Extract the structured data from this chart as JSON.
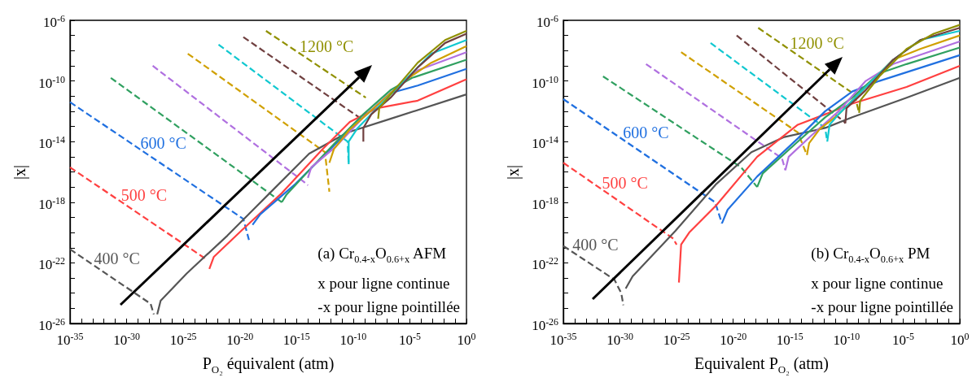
{
  "chart_data": [
    {
      "type": "line",
      "log": "xy",
      "marker": "none",
      "xlabel": "P$_{O₂}$ équivalent (atm)",
      "ylabel": "|x|",
      "annotations": [
        "(a) Cr$_{0.4-x}$O$_{0.6+x}$ AFM",
        "x pour ligne continue",
        "-x pour ligne pointillée"
      ],
      "xlim": [
        1e-35,
        1
      ],
      "ylim": [
        1e-26,
        1e-06
      ],
      "xticks": [
        {
          "value": 1e-35,
          "label": "10$^{-35}$"
        },
        {
          "value": 1e-34,
          "label": null
        },
        {
          "value": 1e-33,
          "label": null
        },
        {
          "value": 1e-32,
          "label": null
        },
        {
          "value": 1e-31,
          "label": null
        },
        {
          "value": 1e-30,
          "label": "10$^{-30}$"
        },
        {
          "value": 1e-29,
          "label": null
        },
        {
          "value": 1e-28,
          "label": null
        },
        {
          "value": 1e-27,
          "label": null
        },
        {
          "value": 1e-26,
          "label": null
        },
        {
          "value": 1e-25,
          "label": "10$^{-25}$"
        },
        {
          "value": 1e-24,
          "label": null
        },
        {
          "value": 1e-23,
          "label": null
        },
        {
          "value": 1e-22,
          "label": null
        },
        {
          "value": 1e-21,
          "label": null
        },
        {
          "value": 1e-20,
          "label": "10$^{-20}$"
        },
        {
          "value": 1e-19,
          "label": null
        },
        {
          "value": 1e-18,
          "label": null
        },
        {
          "value": 1e-17,
          "label": null
        },
        {
          "value": 1e-16,
          "label": null
        },
        {
          "value": 1e-15,
          "label": "10$^{-15}$"
        },
        {
          "value": 1e-14,
          "label": null
        },
        {
          "value": 1e-13,
          "label": null
        },
        {
          "value": 1e-12,
          "label": null
        },
        {
          "value": 1e-11,
          "label": null
        },
        {
          "value": 1e-10,
          "label": "10$^{-10}$"
        },
        {
          "value": 1e-09,
          "label": null
        },
        {
          "value": 1e-08,
          "label": null
        },
        {
          "value": 1e-07,
          "label": null
        },
        {
          "value": 1e-06,
          "label": null
        },
        {
          "value": 1e-05,
          "label": "10$^{-5}$"
        },
        {
          "value": 0.0001,
          "label": null
        },
        {
          "value": 0.001,
          "label": null
        },
        {
          "value": 0.01,
          "label": null
        },
        {
          "value": 0.1,
          "label": null
        },
        {
          "value": 1,
          "label": "10$^{0}$"
        }
      ],
      "yticks": [
        {
          "value": 1e-26,
          "label": "10$^{-26}$"
        },
        {
          "value": 1e-25,
          "label": null
        },
        {
          "value": 1e-24,
          "label": null
        },
        {
          "value": 1e-23,
          "label": null
        },
        {
          "value": 1e-22,
          "label": "10$^{-22}$"
        },
        {
          "value": 1e-21,
          "label": null
        },
        {
          "value": 1e-20,
          "label": null
        },
        {
          "value": 1e-19,
          "label": null
        },
        {
          "value": 1e-18,
          "label": "10$^{-18}$"
        },
        {
          "value": 1e-17,
          "label": null
        },
        {
          "value": 1e-16,
          "label": null
        },
        {
          "value": 1e-15,
          "label": null
        },
        {
          "value": 1e-14,
          "label": "10$^{-14}$"
        },
        {
          "value": 1e-13,
          "label": null
        },
        {
          "value": 1e-12,
          "label": null
        },
        {
          "value": 1e-11,
          "label": null
        },
        {
          "value": 1e-10,
          "label": "10$^{-10}$"
        },
        {
          "value": 1e-09,
          "label": null
        },
        {
          "value": 1e-08,
          "label": null
        },
        {
          "value": 1e-07,
          "label": null
        },
        {
          "value": 1e-06,
          "label": "10$^{-6}$"
        }
      ],
      "series": [
        {
          "name": "400 °C",
          "color": "#555555",
          "line_style": "dashed",
          "x": [
            1e-35,
            1.3e-28,
            2.5e-28
          ],
          "values": [
            7.9e-22,
            2e-25,
            4e-26
          ]
        },
        {
          "name": "500 °C",
          "color": "#ff4040",
          "line_style": "dashed",
          "x": [
            1e-35,
            7.9e-24
          ],
          "values": [
            2e-16,
            2e-22
          ]
        },
        {
          "name": "600 °C",
          "color": "#2070e0",
          "line_style": "dashed",
          "x": [
            1e-35,
            2e-20,
            6.3e-20
          ],
          "values": [
            4e-12,
            7.9e-20,
            3.2e-21
          ]
        },
        {
          "color": "#30a060",
          "line_style": "dashed",
          "x": [
            4e-32,
            5e-17
          ],
          "values": [
            1.6e-10,
            1e-18
          ]
        },
        {
          "color": "#b070e0",
          "line_style": "dashed",
          "x": [
            2e-28,
            7.9e-15,
            1e-14
          ],
          "values": [
            1e-09,
            1.6e-17,
            1.3e-17
          ]
        },
        {
          "color": "#d0a000",
          "line_style": "dashed",
          "x": [
            2.5e-25,
            3.2e-13,
            7.9e-13
          ],
          "values": [
            6.3e-09,
            2e-15,
            5e-18
          ]
        },
        {
          "color": "#10c8d0",
          "line_style": "dashed",
          "x": [
            1.3e-22,
            3.2e-11,
            4e-11
          ],
          "values": [
            2.5e-08,
            1e-14,
            3.2e-16
          ]
        },
        {
          "color": "#704040",
          "line_style": "dashed",
          "x": [
            2e-20,
            5e-10
          ],
          "values": [
            7.9e-08,
            3.2e-13
          ]
        },
        {
          "name": "1200 °C",
          "color": "#909000",
          "line_style": "dashed",
          "x": [
            2e-18,
            1.3e-09
          ],
          "values": [
            2e-07,
            7.9e-12
          ]
        },
        {
          "color": "#555555",
          "x": [
            5e-28,
            1e-27,
            2e-25,
            7.9e-22,
            3.2e-18,
            1.3e-14,
            3.2e-11,
            2e-07,
            1
          ],
          "values": [
            4e-26,
            3.2e-25,
            2e-23,
            6.3e-21,
            3.2e-18,
            1.6e-15,
            4e-14,
            3.2e-13,
            1.3e-11
          ]
        },
        {
          "color": "#ff4040",
          "x": [
            2e-23,
            5e-23,
            1.3e-20,
            5e-17,
            2e-13,
            5e-11,
            1.3e-08,
            5e-05,
            1
          ],
          "values": [
            4e-23,
            2.5e-22,
            1.3e-20,
            4e-18,
            3.2e-15,
            2e-13,
            1.6e-12,
            5e-12,
            1.3e-10
          ]
        },
        {
          "color": "#2070e0",
          "x": [
            1.3e-19,
            6.3e-19,
            7.9e-16,
            3.2e-12,
            7.9e-10,
            2e-07,
            5e-05,
            1
          ],
          "values": [
            3.2e-20,
            1.6e-19,
            1.6e-17,
            7.9e-15,
            4e-13,
            1.6e-11,
            5e-11,
            6.3e-10
          ]
        },
        {
          "color": "#30a060",
          "x": [
            5e-17,
            1.3e-16,
            1.3e-14,
            3.2e-12,
            7.9e-10,
            2e-07,
            1.6e-05,
            1
          ],
          "values": [
            1e-18,
            3.2e-18,
            1.3e-16,
            1e-14,
            6.3e-13,
            2.5e-11,
            1.6e-10,
            2.5e-09
          ]
        },
        {
          "color": "#b070e0",
          "x": [
            1e-14,
            2e-14,
            3.2e-12,
            7.9e-10,
            2e-07,
            5e-05,
            1
          ],
          "values": [
            4e-17,
            2e-16,
            5e-15,
            4e-13,
            1.6e-11,
            5e-10,
            7.9e-09
          ]
        },
        {
          "color": "#d0a000",
          "x": [
            7.9e-13,
            2e-12,
            5e-11,
            1.3e-08,
            3.2e-06,
            0.00079,
            1
          ],
          "values": [
            4e-16,
            3.2e-15,
            6.3e-14,
            2.5e-12,
            1e-10,
            1.6e-09,
            2e-08
          ]
        },
        {
          "color": "#10c8d0",
          "x": [
            4e-11,
            4e-11,
            2.5e-10,
            1.3e-08,
            3.2e-06,
            0.00079,
            1
          ],
          "values": [
            3.2e-16,
            1e-14,
            7.9e-14,
            1.6e-12,
            1e-10,
            6.3e-09,
            5e-08
          ]
        },
        {
          "color": "#704040",
          "x": [
            7.9e-10,
            7.9e-10,
            4e-09,
            2e-07,
            5e-05,
            0.013,
            1
          ],
          "values": [
            1e-14,
            7.9e-14,
            6.3e-13,
            7.9e-12,
            7.9e-10,
            3.2e-08,
            1.3e-07
          ]
        },
        {
          "color": "#909000",
          "x": [
            1.6e-08,
            2e-08,
            2e-07,
            5e-05,
            0.013,
            1
          ],
          "values": [
            3.2e-13,
            1.6e-12,
            1.3e-11,
            1.6e-09,
            5e-08,
            2e-07
          ]
        }
      ]
    },
    {
      "type": "line",
      "log": "xy",
      "marker": "none",
      "xlabel": "Equivalent P$_{O₂}$ (atm)",
      "ylabel": "|x|",
      "annotations": [
        "(b) Cr$_{0.4-x}$O$_{0.6+x}$ PM",
        "x pour ligne continue",
        "-x pour ligne pointillée"
      ],
      "xlim": [
        1e-35,
        1
      ],
      "ylim": [
        1e-26,
        1e-06
      ],
      "xticks": [
        {
          "value": 1e-35,
          "label": "10$^{-35}$"
        },
        {
          "value": 1e-34,
          "label": null
        },
        {
          "value": 1e-33,
          "label": null
        },
        {
          "value": 1e-32,
          "label": null
        },
        {
          "value": 1e-31,
          "label": null
        },
        {
          "value": 1e-30,
          "label": "10$^{-30}$"
        },
        {
          "value": 1e-29,
          "label": null
        },
        {
          "value": 1e-28,
          "label": null
        },
        {
          "value": 1e-27,
          "label": null
        },
        {
          "value": 1e-26,
          "label": null
        },
        {
          "value": 1e-25,
          "label": "10$^{-25}$"
        },
        {
          "value": 1e-24,
          "label": null
        },
        {
          "value": 1e-23,
          "label": null
        },
        {
          "value": 1e-22,
          "label": null
        },
        {
          "value": 1e-21,
          "label": null
        },
        {
          "value": 1e-20,
          "label": "10$^{-20}$"
        },
        {
          "value": 1e-19,
          "label": null
        },
        {
          "value": 1e-18,
          "label": null
        },
        {
          "value": 1e-17,
          "label": null
        },
        {
          "value": 1e-16,
          "label": null
        },
        {
          "value": 1e-15,
          "label": "10$^{-15}$"
        },
        {
          "value": 1e-14,
          "label": null
        },
        {
          "value": 1e-13,
          "label": null
        },
        {
          "value": 1e-12,
          "label": null
        },
        {
          "value": 1e-11,
          "label": null
        },
        {
          "value": 1e-10,
          "label": "10$^{-10}$"
        },
        {
          "value": 1e-09,
          "label": null
        },
        {
          "value": 1e-08,
          "label": null
        },
        {
          "value": 1e-07,
          "label": null
        },
        {
          "value": 1e-06,
          "label": null
        },
        {
          "value": 1e-05,
          "label": "10$^{-5}$"
        },
        {
          "value": 0.0001,
          "label": null
        },
        {
          "value": 0.001,
          "label": null
        },
        {
          "value": 0.01,
          "label": null
        },
        {
          "value": 0.1,
          "label": null
        },
        {
          "value": 1,
          "label": "10$^{0}$"
        }
      ],
      "yticks": [
        {
          "value": 1e-26,
          "label": "10$^{-26}$"
        },
        {
          "value": 1e-25,
          "label": null
        },
        {
          "value": 1e-24,
          "label": null
        },
        {
          "value": 1e-23,
          "label": null
        },
        {
          "value": 1e-22,
          "label": "10$^{-22}$"
        },
        {
          "value": 1e-21,
          "label": null
        },
        {
          "value": 1e-20,
          "label": null
        },
        {
          "value": 1e-19,
          "label": null
        },
        {
          "value": 1e-18,
          "label": "10$^{-18}$"
        },
        {
          "value": 1e-17,
          "label": null
        },
        {
          "value": 1e-16,
          "label": null
        },
        {
          "value": 1e-15,
          "label": null
        },
        {
          "value": 1e-14,
          "label": "10$^{-14}$"
        },
        {
          "value": 1e-13,
          "label": null
        },
        {
          "value": 1e-12,
          "label": null
        },
        {
          "value": 1e-11,
          "label": null
        },
        {
          "value": 1e-10,
          "label": "10$^{-10}$"
        },
        {
          "value": 1e-09,
          "label": null
        },
        {
          "value": 1e-08,
          "label": null
        },
        {
          "value": 1e-07,
          "label": null
        },
        {
          "value": 1e-06,
          "label": "10$^{-6}$"
        }
      ],
      "series": [
        {
          "name": "400 °C",
          "color": "#555555",
          "line_style": "dashed",
          "x": [
            1e-35,
            3.2e-31,
            1.3e-30,
            2e-30
          ],
          "values": [
            1.3e-21,
            7.9e-24,
            1e-24,
            1.6e-25
          ]
        },
        {
          "name": "500 °C",
          "color": "#ff4040",
          "line_style": "dashed",
          "x": [
            1e-35,
            5e-26,
            1e-25
          ],
          "values": [
            4e-16,
            4e-21,
            1.6e-21
          ]
        },
        {
          "name": "600 °C",
          "color": "#2070e0",
          "line_style": "dashed",
          "x": [
            1e-35,
            2.5e-22,
            1e-21
          ],
          "values": [
            6.3e-12,
            1e-18,
            4e-20
          ]
        },
        {
          "color": "#30a060",
          "line_style": "dashed",
          "x": [
            3.2e-32,
            5e-20,
            1.3e-18
          ],
          "values": [
            2e-10,
            2e-16,
            1e-17
          ]
        },
        {
          "color": "#b070e0",
          "line_style": "dashed",
          "x": [
            2e-28,
            2e-16,
            4e-16
          ],
          "values": [
            1.3e-09,
            7.9e-16,
            1.3e-16
          ]
        },
        {
          "color": "#d0a000",
          "line_style": "dashed",
          "x": [
            2.5e-25,
            5e-15,
            3.2e-14
          ],
          "values": [
            7.9e-09,
            4e-14,
            1.3e-15
          ]
        },
        {
          "color": "#10c8d0",
          "line_style": "dashed",
          "x": [
            1e-22,
            1.3e-12,
            2e-12
          ],
          "values": [
            3.2e-08,
            7.9e-14,
            1e-14
          ]
        },
        {
          "color": "#704040",
          "line_style": "dashed",
          "x": [
            2e-20,
            6.3e-11,
            7.9e-11
          ],
          "values": [
            1e-07,
            2e-13,
            1.6e-13
          ]
        },
        {
          "name": "1200 °C",
          "color": "#909000",
          "line_style": "dashed",
          "x": [
            1.6e-18,
            5e-10,
            1.3e-09
          ],
          "values": [
            3.2e-07,
            1.3e-11,
            7.9e-13
          ]
        },
        {
          "color": "#555555",
          "x": [
            3.2e-30,
            1.3e-29,
            7.9e-26,
            3.2e-22,
            4e-19,
            3.2e-16,
            1.3e-12,
            3.2e-10,
            2e-05,
            1
          ],
          "values": [
            2e-24,
            1.3e-23,
            1.3e-20,
            1.6e-17,
            2e-15,
            2e-14,
            7.9e-14,
            4e-13,
            7.9e-12,
            1.6e-10
          ]
        },
        {
          "color": "#ff4040",
          "x": [
            1.6e-25,
            2.5e-25,
            1.3e-24,
            3.2e-22,
            1.3e-18,
            5e-15,
            1.3e-12,
            3.2e-10,
            2e-05,
            1
          ],
          "values": [
            5e-24,
            1.6e-21,
            1e-20,
            6.3e-19,
            1e-15,
            1.3e-13,
            6.3e-13,
            3.2e-12,
            4e-11,
            1e-09
          ]
        },
        {
          "color": "#2070e0",
          "x": [
            1e-21,
            3.2e-21,
            1.3e-18,
            5e-15,
            1.3e-12,
            3.2e-10,
            7.9e-08,
            1
          ],
          "values": [
            4e-20,
            3.2e-19,
            5e-17,
            1.6e-14,
            1e-12,
            2e-11,
            1e-10,
            5e-09
          ]
        },
        {
          "color": "#30a060",
          "x": [
            1.3e-18,
            4e-18,
            5e-15,
            1.3e-12,
            3.2e-10,
            7.9e-08,
            2e-05,
            1
          ],
          "values": [
            1e-17,
            7.9e-17,
            1e-14,
            4e-13,
            7.9e-12,
            3.2e-10,
            1.3e-09,
            1.6e-08
          ]
        },
        {
          "color": "#b070e0",
          "x": [
            4e-16,
            7.9e-16,
            7.9e-14,
            2e-11,
            5e-09,
            1.3e-06,
            1
          ],
          "values": [
            1.3e-16,
            1e-15,
            2.5e-14,
            1e-12,
            1e-10,
            1.3e-09,
            4e-08
          ]
        },
        {
          "color": "#d0a000",
          "x": [
            3.2e-14,
            5e-14,
            4e-13,
            2e-11,
            5e-09,
            1.3e-06,
            0.00032,
            1
          ],
          "values": [
            1.3e-15,
            7.9e-15,
            6.3e-14,
            6.3e-13,
            4e-11,
            2.5e-09,
            1.3e-08,
            1e-07
          ]
        },
        {
          "color": "#10c8d0",
          "x": [
            2e-12,
            3.2e-12,
            2e-11,
            5e-09,
            1.3e-06,
            0.00032,
            1
          ],
          "values": [
            1e-14,
            1.3e-13,
            6.3e-13,
            4e-11,
            2.5e-09,
            5e-08,
            2e-07
          ]
        },
        {
          "color": "#704040",
          "x": [
            7.9e-11,
            1e-10,
            5e-09,
            1.3e-06,
            0.00032,
            1
          ],
          "values": [
            1.6e-13,
            1.6e-12,
            2.5e-11,
            2.5e-09,
            5e-08,
            3.2e-07
          ]
        },
        {
          "color": "#909000",
          "x": [
            1.3e-09,
            1.6e-09,
            7.9e-08,
            2e-05,
            0.005,
            1
          ],
          "values": [
            7.9e-13,
            5e-12,
            2e-10,
            1.3e-08,
            1.3e-07,
            5e-07
          ]
        }
      ]
    }
  ]
}
